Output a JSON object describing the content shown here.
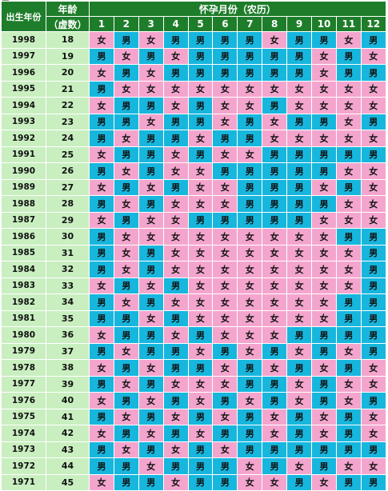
{
  "header": {
    "birth_year_label": "出生年份",
    "age_label_line1": "年龄",
    "age_label_line2": "（虚数）",
    "month_group_label": "怀孕月份（农历）",
    "months": [
      "1",
      "2",
      "3",
      "4",
      "5",
      "6",
      "7",
      "8",
      "9",
      "10",
      "11",
      "12"
    ]
  },
  "legend": {
    "m": "男",
    "f": "女"
  },
  "colors": {
    "header_green": "#1e7d2a",
    "label_green": "#c9efc0",
    "boy_blue": "#17b6dd",
    "girl_pink": "#f4a5cd"
  },
  "rows": [
    {
      "year": "1998",
      "age": "18",
      "cells": [
        "女",
        "男",
        "女",
        "男",
        "男",
        "男",
        "男",
        "女",
        "男",
        "男",
        "女",
        "男"
      ]
    },
    {
      "year": "1997",
      "age": "19",
      "cells": [
        "男",
        "女",
        "男",
        "女",
        "男",
        "男",
        "男",
        "男",
        "男",
        "女",
        "男",
        "女"
      ]
    },
    {
      "year": "1996",
      "age": "20",
      "cells": [
        "女",
        "男",
        "女",
        "男",
        "男",
        "男",
        "男",
        "男",
        "男",
        "女",
        "男",
        "男"
      ]
    },
    {
      "year": "1995",
      "age": "21",
      "cells": [
        "男",
        "女",
        "女",
        "女",
        "女",
        "女",
        "女",
        "女",
        "女",
        "女",
        "女",
        "女"
      ]
    },
    {
      "year": "1994",
      "age": "22",
      "cells": [
        "女",
        "男",
        "男",
        "女",
        "男",
        "女",
        "女",
        "男",
        "女",
        "女",
        "女",
        "女"
      ]
    },
    {
      "year": "1993",
      "age": "23",
      "cells": [
        "男",
        "男",
        "女",
        "男",
        "男",
        "女",
        "男",
        "女",
        "男",
        "男",
        "女",
        "男"
      ]
    },
    {
      "year": "1992",
      "age": "24",
      "cells": [
        "男",
        "女",
        "男",
        "男",
        "女",
        "男",
        "男",
        "女",
        "女",
        "女",
        "女",
        "女"
      ]
    },
    {
      "year": "1991",
      "age": "25",
      "cells": [
        "女",
        "男",
        "男",
        "女",
        "男",
        "女",
        "女",
        "男",
        "男",
        "男",
        "男",
        "男"
      ]
    },
    {
      "year": "1990",
      "age": "26",
      "cells": [
        "男",
        "女",
        "男",
        "女",
        "女",
        "男",
        "男",
        "男",
        "男",
        "男",
        "女",
        "女"
      ]
    },
    {
      "year": "1989",
      "age": "27",
      "cells": [
        "女",
        "男",
        "女",
        "男",
        "女",
        "女",
        "男",
        "男",
        "男",
        "女",
        "男",
        "女"
      ]
    },
    {
      "year": "1988",
      "age": "28",
      "cells": [
        "男",
        "女",
        "男",
        "女",
        "女",
        "女",
        "男",
        "男",
        "男",
        "男",
        "女",
        "女"
      ]
    },
    {
      "year": "1987",
      "age": "29",
      "cells": [
        "女",
        "男",
        "女",
        "女",
        "男",
        "男",
        "男",
        "男",
        "男",
        "女",
        "女",
        "女"
      ]
    },
    {
      "year": "1986",
      "age": "30",
      "cells": [
        "男",
        "女",
        "女",
        "女",
        "女",
        "女",
        "女",
        "女",
        "女",
        "女",
        "男",
        "男"
      ]
    },
    {
      "year": "1985",
      "age": "31",
      "cells": [
        "男",
        "女",
        "男",
        "女",
        "女",
        "女",
        "女",
        "女",
        "女",
        "女",
        "女",
        "男"
      ]
    },
    {
      "year": "1984",
      "age": "32",
      "cells": [
        "男",
        "女",
        "男",
        "女",
        "女",
        "女",
        "女",
        "女",
        "女",
        "女",
        "女",
        "男"
      ]
    },
    {
      "year": "1983",
      "age": "33",
      "cells": [
        "女",
        "男",
        "女",
        "男",
        "女",
        "女",
        "女",
        "女",
        "女",
        "女",
        "女",
        "男"
      ]
    },
    {
      "year": "1982",
      "age": "34",
      "cells": [
        "男",
        "女",
        "男",
        "女",
        "女",
        "女",
        "女",
        "女",
        "女",
        "女",
        "男",
        "男"
      ]
    },
    {
      "year": "1981",
      "age": "35",
      "cells": [
        "男",
        "男",
        "女",
        "男",
        "女",
        "女",
        "女",
        "女",
        "女",
        "女",
        "男",
        "男"
      ]
    },
    {
      "year": "1980",
      "age": "36",
      "cells": [
        "女",
        "男",
        "男",
        "女",
        "男",
        "女",
        "女",
        "女",
        "男",
        "男",
        "男",
        "男"
      ]
    },
    {
      "year": "1979",
      "age": "37",
      "cells": [
        "男",
        "女",
        "男",
        "男",
        "女",
        "男",
        "女",
        "男",
        "女",
        "男",
        "女",
        "男"
      ]
    },
    {
      "year": "1978",
      "age": "38",
      "cells": [
        "女",
        "男",
        "女",
        "男",
        "男",
        "女",
        "男",
        "女",
        "男",
        "女",
        "男",
        "女"
      ]
    },
    {
      "year": "1977",
      "age": "39",
      "cells": [
        "男",
        "女",
        "男",
        "女",
        "女",
        "女",
        "男",
        "男",
        "女",
        "男",
        "女",
        "女"
      ]
    },
    {
      "year": "1976",
      "age": "40",
      "cells": [
        "女",
        "男",
        "女",
        "男",
        "女",
        "男",
        "女",
        "男",
        "女",
        "男",
        "女",
        "男"
      ]
    },
    {
      "year": "1975",
      "age": "41",
      "cells": [
        "男",
        "女",
        "男",
        "女",
        "男",
        "女",
        "男",
        "女",
        "男",
        "女",
        "男",
        "女"
      ]
    },
    {
      "year": "1974",
      "age": "42",
      "cells": [
        "女",
        "男",
        "女",
        "男",
        "女",
        "男",
        "男",
        "女",
        "男",
        "女",
        "男",
        "女"
      ]
    },
    {
      "year": "1973",
      "age": "43",
      "cells": [
        "男",
        "女",
        "男",
        "女",
        "男",
        "女",
        "男",
        "男",
        "男",
        "男",
        "男",
        "男"
      ]
    },
    {
      "year": "1972",
      "age": "44",
      "cells": [
        "男",
        "男",
        "女",
        "男",
        "男",
        "男",
        "女",
        "男",
        "女",
        "男",
        "女",
        "女"
      ]
    },
    {
      "year": "1971",
      "age": "45",
      "cells": [
        "女",
        "男",
        "男",
        "女",
        "男",
        "男",
        "女",
        "女",
        "男",
        "女",
        "男",
        "男"
      ]
    }
  ]
}
